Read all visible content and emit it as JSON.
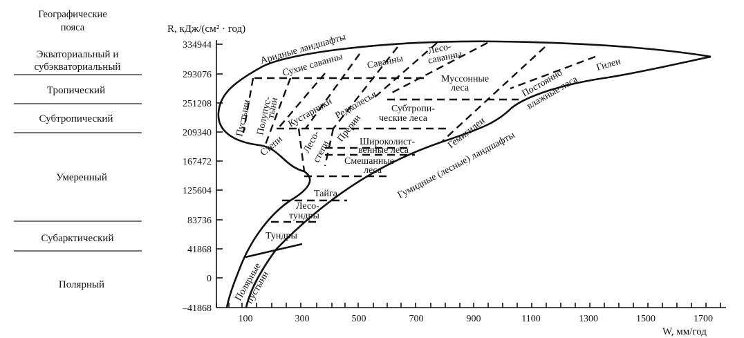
{
  "header": {
    "belts_title_line1": "Географические",
    "belts_title_line2": "пояса",
    "y_axis_label": "R, кДж/(см² · год)",
    "x_axis_label": "W, мм/год"
  },
  "belts": [
    {
      "line1": "Экваториальный и",
      "line2": "субэкваториальный"
    },
    {
      "line1": "Тропический",
      "line2": ""
    },
    {
      "line1": "Субтропический",
      "line2": ""
    },
    {
      "line1": "Умеренный",
      "line2": ""
    },
    {
      "line1": "Субарктический",
      "line2": ""
    },
    {
      "line1": "Полярный",
      "line2": ""
    }
  ],
  "y_ticks": [
    "334944",
    "293076",
    "251208",
    "209340",
    "167472",
    "125604",
    "83736",
    "41868",
    "0",
    "–41868"
  ],
  "x_ticks": [
    "100",
    "300",
    "500",
    "700",
    "900",
    "1100",
    "1300",
    "1500",
    "1700"
  ],
  "zones": {
    "arid": "Аридные ландшафты",
    "dry_savannas": "Сухие саванны",
    "savannas": "Саванны",
    "forest_savannas_1": "Лесо-",
    "forest_savannas_2": "саванны",
    "monsoon_1": "Муссонные",
    "monsoon_2": "леса",
    "deserts": "Пустыни",
    "semideserts_1": "Полупус-",
    "semideserts_2": "тыни",
    "shrubs": "Кустарники",
    "woodlands": "Редколесья",
    "subtropical_1": "Субтропи-",
    "subtropical_2": "ческие леса",
    "steppes": "Степи",
    "forest_steppes_1": "Лесо-",
    "forest_steppes_2": "степи",
    "prairies": "Прерии",
    "broadleaf_1": "Широколист-",
    "broadleaf_2": "венные леса",
    "mixed_1": "Смешанные",
    "mixed_2": "леса",
    "taiga": "Тайга",
    "forest_tundra_1": "Лесо-",
    "forest_tundra_2": "тундры",
    "tundra": "Тундры",
    "polar_deserts_1": "Полярные",
    "polar_deserts_2": "пустыни",
    "permanent_wet_1": "Постоянно",
    "permanent_wet_2": "влажные леса",
    "hemihylaea": "Гемигилеи",
    "hylaea": "Гилеи",
    "humid": "Гумидные (лесные) ландшафты"
  }
}
